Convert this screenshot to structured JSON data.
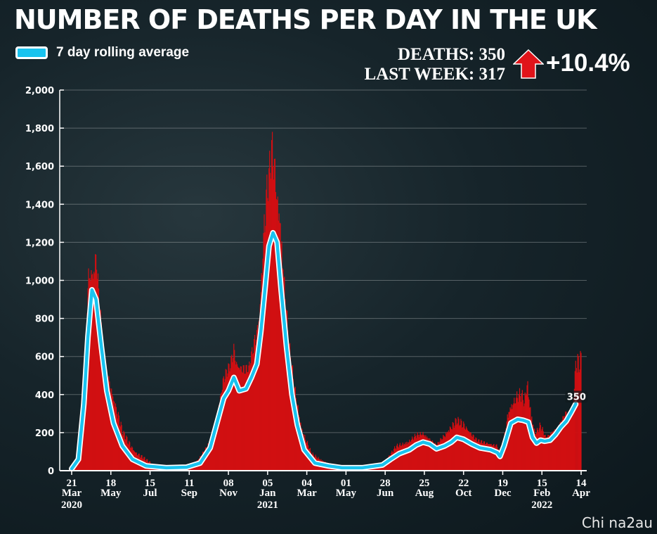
{
  "title": "NUMBER OF DEATHS PER DAY IN THE UK",
  "legend": {
    "label": "7 day rolling average"
  },
  "stats": {
    "deaths_line": "DEATHS: 350",
    "last_week_line": "LAST WEEK: 317",
    "change": "+10.4%"
  },
  "watermark": "Chi na2au",
  "colors": {
    "bars": "#d10f12",
    "line": "#19c3ef",
    "line_outline": "#ffffff",
    "up_arrow": "#e0141a"
  },
  "chart_data": {
    "type": "bar",
    "title": "NUMBER OF DEATHS PER DAY IN THE UK",
    "ylim": [
      0,
      2000
    ],
    "yticks": [
      0,
      200,
      400,
      600,
      800,
      1000,
      1200,
      1400,
      1600,
      1800,
      2000
    ],
    "ytick_labels": [
      "0",
      "200",
      "400",
      "600",
      "800",
      "1,000",
      "1,200",
      "1,400",
      "1,600",
      "1,800",
      "2,000"
    ],
    "grid": true,
    "x_ticks": [
      {
        "day": "21",
        "month": "Mar",
        "year": "2020",
        "t": 0
      },
      {
        "day": "18",
        "month": "May",
        "year": "",
        "t": 58
      },
      {
        "day": "15",
        "month": "Jul",
        "year": "",
        "t": 116
      },
      {
        "day": "11",
        "month": "Sep",
        "year": "",
        "t": 174
      },
      {
        "day": "08",
        "month": "Nov",
        "year": "",
        "t": 232
      },
      {
        "day": "05",
        "month": "Jan",
        "year": "2021",
        "t": 290
      },
      {
        "day": "04",
        "month": "Mar",
        "year": "",
        "t": 348
      },
      {
        "day": "01",
        "month": "May",
        "year": "",
        "t": 406
      },
      {
        "day": "28",
        "month": "Jun",
        "year": "",
        "t": 464
      },
      {
        "day": "25",
        "month": "Aug",
        "year": "",
        "t": 522
      },
      {
        "day": "22",
        "month": "Oct",
        "year": "",
        "t": 580
      },
      {
        "day": "19",
        "month": "Dec",
        "year": "",
        "t": 638
      },
      {
        "day": "15",
        "month": "Feb",
        "year": "2022",
        "t": 696
      },
      {
        "day": "14",
        "month": "Apr",
        "year": "",
        "t": 754
      }
    ],
    "series": [
      {
        "name": "7 day rolling average",
        "type": "line",
        "points": [
          [
            0,
            10
          ],
          [
            10,
            60
          ],
          [
            18,
            350
          ],
          [
            24,
            700
          ],
          [
            30,
            950
          ],
          [
            36,
            900
          ],
          [
            44,
            650
          ],
          [
            52,
            420
          ],
          [
            62,
            250
          ],
          [
            75,
            130
          ],
          [
            90,
            60
          ],
          [
            110,
            25
          ],
          [
            140,
            15
          ],
          [
            170,
            18
          ],
          [
            190,
            40
          ],
          [
            205,
            120
          ],
          [
            215,
            250
          ],
          [
            225,
            380
          ],
          [
            232,
            420
          ],
          [
            240,
            490
          ],
          [
            248,
            420
          ],
          [
            258,
            430
          ],
          [
            266,
            490
          ],
          [
            274,
            560
          ],
          [
            280,
            730
          ],
          [
            286,
            950
          ],
          [
            292,
            1180
          ],
          [
            298,
            1250
          ],
          [
            304,
            1200
          ],
          [
            310,
            950
          ],
          [
            318,
            650
          ],
          [
            326,
            400
          ],
          [
            334,
            240
          ],
          [
            344,
            110
          ],
          [
            360,
            40
          ],
          [
            380,
            25
          ],
          [
            400,
            15
          ],
          [
            430,
            15
          ],
          [
            460,
            30
          ],
          [
            472,
            60
          ],
          [
            485,
            90
          ],
          [
            500,
            110
          ],
          [
            510,
            135
          ],
          [
            520,
            150
          ],
          [
            530,
            140
          ],
          [
            540,
            115
          ],
          [
            552,
            130
          ],
          [
            562,
            150
          ],
          [
            570,
            175
          ],
          [
            580,
            165
          ],
          [
            592,
            140
          ],
          [
            604,
            120
          ],
          [
            620,
            110
          ],
          [
            630,
            95
          ],
          [
            634,
            75
          ],
          [
            640,
            130
          ],
          [
            650,
            250
          ],
          [
            660,
            270
          ],
          [
            668,
            265
          ],
          [
            676,
            255
          ],
          [
            682,
            175
          ],
          [
            688,
            145
          ],
          [
            694,
            160
          ],
          [
            700,
            155
          ],
          [
            708,
            160
          ],
          [
            716,
            190
          ],
          [
            724,
            230
          ],
          [
            732,
            260
          ],
          [
            740,
            310
          ],
          [
            746,
            350
          ]
        ]
      },
      {
        "name": "",
        "type": "bar",
        "points": [
          [
            0,
            5
          ],
          [
            14,
            50
          ],
          [
            20,
            500
          ],
          [
            24,
            1100
          ],
          [
            28,
            1100
          ],
          [
            32,
            1050
          ],
          [
            36,
            1220
          ],
          [
            40,
            1000
          ],
          [
            48,
            600
          ],
          [
            56,
            500
          ],
          [
            64,
            400
          ],
          [
            76,
            220
          ],
          [
            95,
            110
          ],
          [
            120,
            40
          ],
          [
            150,
            20
          ],
          [
            180,
            30
          ],
          [
            205,
            160
          ],
          [
            215,
            300
          ],
          [
            225,
            520
          ],
          [
            235,
            590
          ],
          [
            240,
            690
          ],
          [
            244,
            600
          ],
          [
            252,
            580
          ],
          [
            262,
            560
          ],
          [
            270,
            720
          ],
          [
            278,
            860
          ],
          [
            284,
            1350
          ],
          [
            288,
            1560
          ],
          [
            292,
            1650
          ],
          [
            296,
            1820
          ],
          [
            300,
            1730
          ],
          [
            304,
            1500
          ],
          [
            308,
            1450
          ],
          [
            314,
            1100
          ],
          [
            322,
            700
          ],
          [
            330,
            470
          ],
          [
            340,
            250
          ],
          [
            355,
            100
          ],
          [
            380,
            40
          ],
          [
            420,
            20
          ],
          [
            460,
            30
          ],
          [
            480,
            140
          ],
          [
            500,
            170
          ],
          [
            510,
            200
          ],
          [
            520,
            210
          ],
          [
            540,
            140
          ],
          [
            560,
            250
          ],
          [
            570,
            290
          ],
          [
            580,
            270
          ],
          [
            600,
            170
          ],
          [
            630,
            140
          ],
          [
            636,
            70
          ],
          [
            646,
            340
          ],
          [
            652,
            380
          ],
          [
            660,
            430
          ],
          [
            666,
            440
          ],
          [
            670,
            380
          ],
          [
            674,
            530
          ],
          [
            680,
            330
          ],
          [
            686,
            210
          ],
          [
            694,
            260
          ],
          [
            702,
            180
          ],
          [
            712,
            220
          ],
          [
            720,
            230
          ],
          [
            726,
            280
          ],
          [
            732,
            320
          ],
          [
            736,
            280
          ],
          [
            742,
            320
          ],
          [
            746,
            650
          ]
        ]
      }
    ],
    "annotations": [
      {
        "text": "350",
        "series": "7 day rolling average",
        "t": 746,
        "value": 350
      }
    ]
  }
}
